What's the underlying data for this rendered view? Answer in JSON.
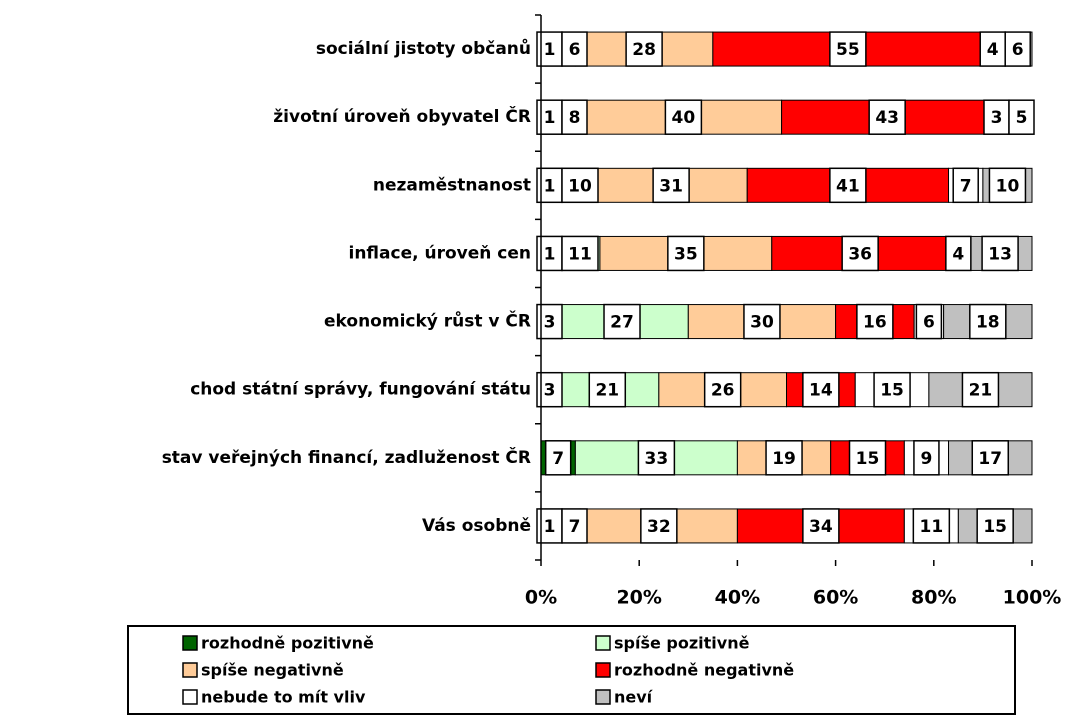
{
  "chart_data": {
    "type": "stacked_bar_horizontal",
    "categories": [
      "sociální jistoty občanů",
      "životní úroveň obyvatel ČR",
      "nezaměstnanost",
      "inflace, úroveň cen",
      "ekonomický růst v ČR",
      "chod státní správy, fungování státu",
      "stav veřejných financí, zadluženost ČR",
      "Vás osobně"
    ],
    "series": [
      {
        "name": "rozhodně pozitivně",
        "color": "#006400",
        "values": [
          1,
          1,
          1,
          1,
          3,
          3,
          7,
          1
        ]
      },
      {
        "name": "spíše pozitivně",
        "color": "#ccffcc",
        "values": [
          6,
          8,
          10,
          11,
          27,
          21,
          33,
          7
        ]
      },
      {
        "name": "spíše negativně",
        "color": "#ffcc99",
        "values": [
          28,
          40,
          31,
          35,
          30,
          26,
          19,
          32
        ]
      },
      {
        "name": "rozhodně negativně",
        "color": "#ff0000",
        "values": [
          55,
          43,
          41,
          36,
          16,
          14,
          15,
          34
        ]
      },
      {
        "name": "nebude to mít vliv",
        "color": "#ffffff",
        "values": [
          4,
          3,
          7,
          4,
          6,
          15,
          9,
          11
        ]
      },
      {
        "name": "neví",
        "color": "#c0c0c0",
        "values": [
          6,
          5,
          10,
          13,
          18,
          21,
          17,
          15
        ]
      }
    ],
    "xlim": [
      0,
      100
    ],
    "xticks": [
      {
        "value": 0,
        "label": "0%"
      },
      {
        "value": 20,
        "label": "20%"
      },
      {
        "value": 40,
        "label": "40%"
      },
      {
        "value": 60,
        "label": "60%"
      },
      {
        "value": 80,
        "label": "80%"
      },
      {
        "value": 100,
        "label": "100%"
      }
    ],
    "legend": "bottom"
  }
}
